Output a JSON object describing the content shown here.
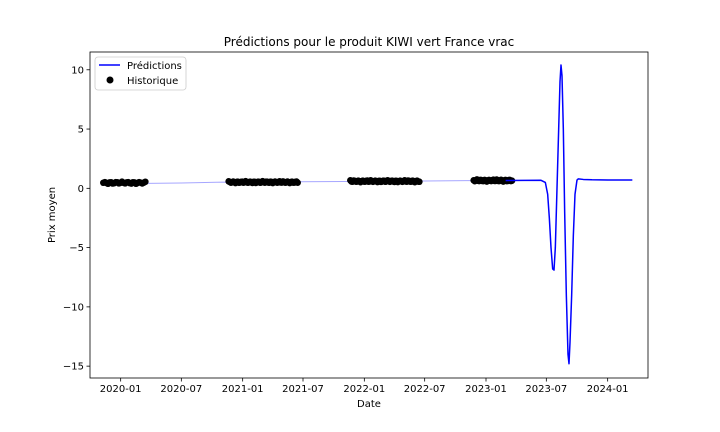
{
  "chart_data": {
    "type": "line",
    "title": "Prédictions pour le produit KIWI vert France vrac",
    "xlabel": "Date",
    "ylabel": "Prix moyen",
    "xlim": [
      "2019-10-01",
      "2024-05-01"
    ],
    "ylim": [
      -16,
      11.5
    ],
    "x_ticks": [
      "2020-01",
      "2020-07",
      "2021-01",
      "2021-07",
      "2022-01",
      "2022-07",
      "2023-01",
      "2023-07",
      "2024-01"
    ],
    "y_ticks": [
      -15,
      -10,
      -5,
      0,
      5,
      10
    ],
    "grid": false,
    "legend": {
      "position": "top-left",
      "entries": [
        {
          "label": "Prédictions",
          "marker": "line",
          "color": "#0000ff"
        },
        {
          "label": "Historique",
          "marker": "dot",
          "color": "#000000"
        }
      ]
    },
    "series": [
      {
        "name": "Prédictions",
        "kind": "line",
        "color": "#0000ff",
        "points": [
          [
            "2019-11-10",
            0.55
          ],
          [
            "2020-01-01",
            0.48
          ],
          [
            "2020-03-20",
            0.42
          ],
          [
            "2020-07-01",
            0.45
          ],
          [
            "2020-11-01",
            0.52
          ],
          [
            "2021-03-01",
            0.5
          ],
          [
            "2021-06-20",
            0.55
          ],
          [
            "2021-11-01",
            0.58
          ],
          [
            "2022-03-01",
            0.6
          ],
          [
            "2022-07-01",
            0.62
          ],
          [
            "2022-11-01",
            0.65
          ],
          [
            "2023-03-01",
            0.66
          ],
          [
            "2023-06-15",
            0.68
          ],
          [
            "2023-06-28",
            0.5
          ],
          [
            "2023-07-05",
            -0.5
          ],
          [
            "2023-07-10",
            -2.5
          ],
          [
            "2023-07-15",
            -5.0
          ],
          [
            "2023-07-20",
            -6.8
          ],
          [
            "2023-07-24",
            -6.9
          ],
          [
            "2023-07-28",
            -5.0
          ],
          [
            "2023-08-02",
            0.0
          ],
          [
            "2023-08-07",
            5.0
          ],
          [
            "2023-08-11",
            9.0
          ],
          [
            "2023-08-14",
            10.4
          ],
          [
            "2023-08-17",
            9.5
          ],
          [
            "2023-08-21",
            5.0
          ],
          [
            "2023-08-25",
            -2.0
          ],
          [
            "2023-08-30",
            -9.0
          ],
          [
            "2023-09-04",
            -14.0
          ],
          [
            "2023-09-07",
            -14.8
          ],
          [
            "2023-09-10",
            -13.0
          ],
          [
            "2023-09-15",
            -9.0
          ],
          [
            "2023-09-20",
            -4.0
          ],
          [
            "2023-09-25",
            -0.5
          ],
          [
            "2023-10-01",
            0.7
          ],
          [
            "2023-10-05",
            0.8
          ],
          [
            "2023-10-20",
            0.75
          ],
          [
            "2023-11-15",
            0.72
          ],
          [
            "2024-01-01",
            0.7
          ],
          [
            "2024-03-15",
            0.7
          ]
        ]
      },
      {
        "name": "Historique",
        "kind": "scatter",
        "color": "#000000",
        "segments": [
          {
            "start": "2019-11-10",
            "end": "2020-03-15",
            "count": 28,
            "y_mean": 0.47,
            "y_amp": 0.09
          },
          {
            "start": "2020-11-20",
            "end": "2021-06-15",
            "count": 62,
            "y_mean": 0.52,
            "y_amp": 0.08
          },
          {
            "start": "2021-11-20",
            "end": "2022-06-15",
            "count": 62,
            "y_mean": 0.6,
            "y_amp": 0.08
          },
          {
            "start": "2022-11-25",
            "end": "2023-03-20",
            "count": 36,
            "y_mean": 0.66,
            "y_amp": 0.09
          }
        ]
      }
    ]
  }
}
